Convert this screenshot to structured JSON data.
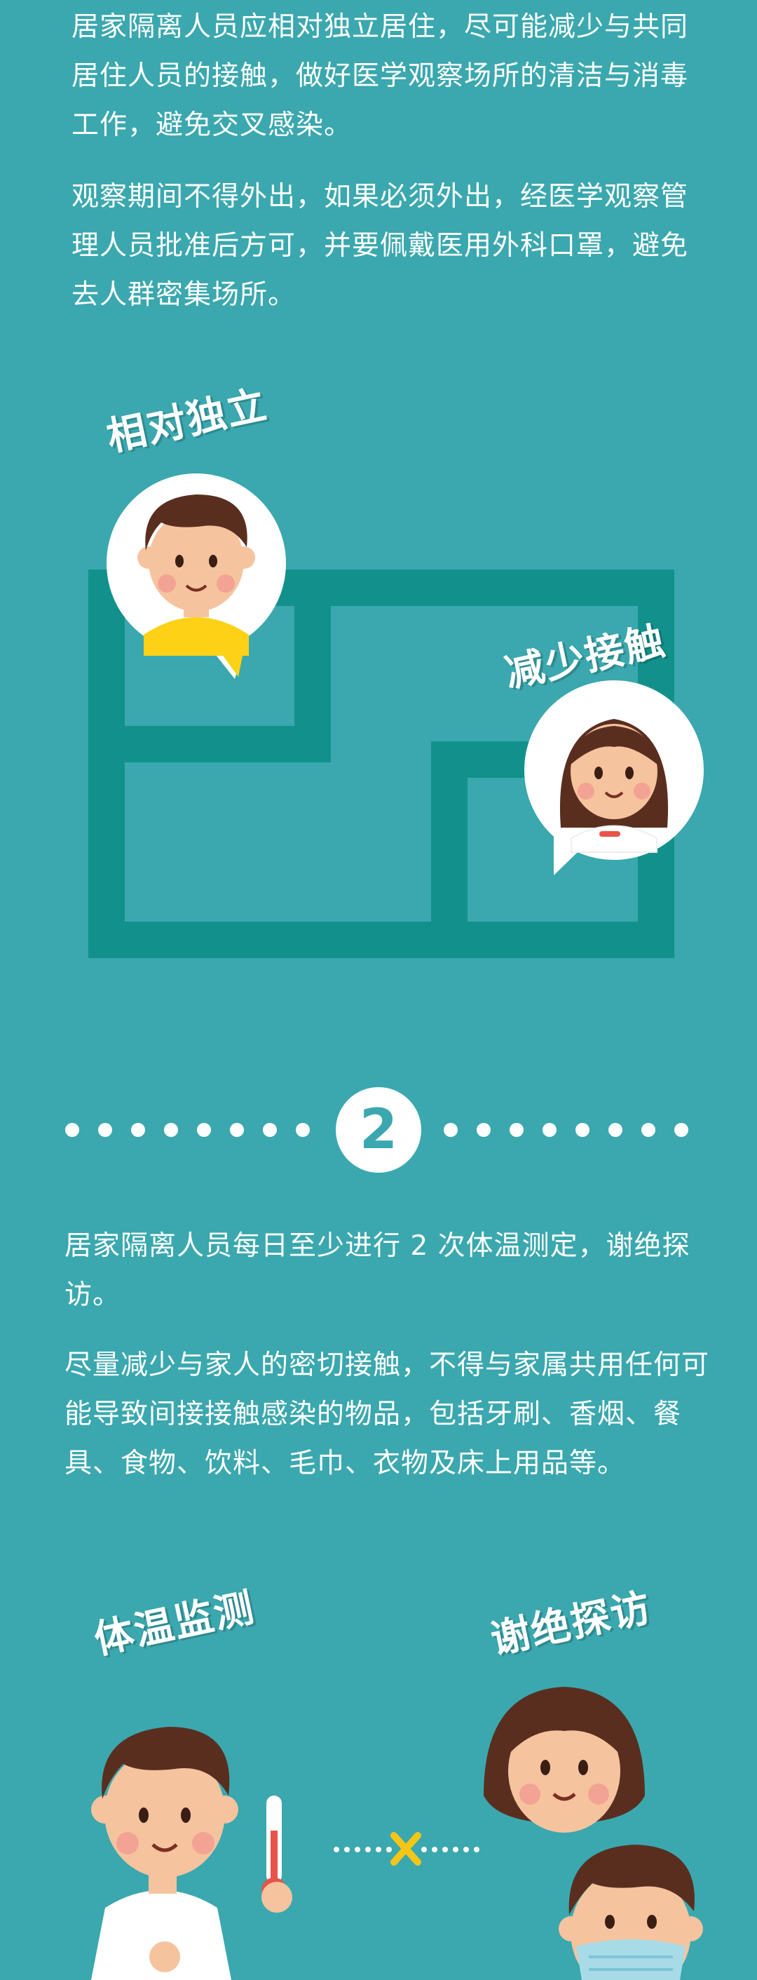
{
  "section1": {
    "paragraph1": "居家隔离人员应相对独立居住，尽可能减少与共同居住人员的接触，做好医学观察场所的清洁与消毒工作，避免交叉感染。",
    "paragraph2": "观察期间不得外出，如果必须外出，经医学观察管理人员批准后方可，并要佩戴医用外科口罩，避免去人群密集场所。",
    "label_independent": "相对独立",
    "label_reduce_contact": "减少接触"
  },
  "section2": {
    "number": "2",
    "paragraph1": "居家隔离人员每日至少进行 2 次体温测定，谢绝探访。",
    "paragraph2": "尽量减少与家人的密切接触，不得与家属共用任何可能导致间接接触感染的物品，包括牙刷、香烟、餐具、食物、饮料、毛巾、衣物及床上用品等。",
    "label_temperature": "体温监测",
    "label_decline_visits": "谢绝探访"
  },
  "colors": {
    "background": "#3aa8ae",
    "maze": "#12918c",
    "skin": "#f6c39f",
    "hair": "#5a2e1f",
    "yellow_shirt": "#fcd116",
    "cross": "#f5c518"
  }
}
